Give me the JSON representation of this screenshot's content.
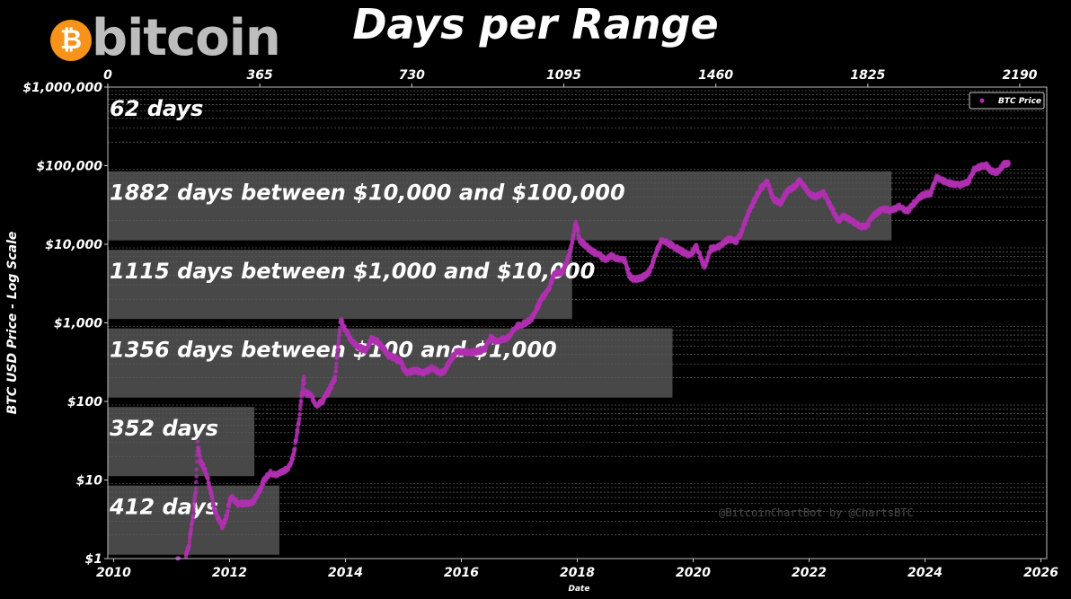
{
  "logo": {
    "text": "bitcoin",
    "glyph": "₿",
    "color": "#f7931a"
  },
  "watermark": "@BitcoinChartBot by @ChartsBTC",
  "chart_data": {
    "type": "scatter",
    "title": "Days per Range",
    "xlabel": "Date",
    "ylabel": "BTC USD Price - Log Scale",
    "yscale": "log",
    "ylim": [
      1,
      1000000
    ],
    "xlim": [
      2009.9,
      2026.1
    ],
    "x_ticks": [
      "2010",
      "2012",
      "2014",
      "2016",
      "2018",
      "2020",
      "2022",
      "2024",
      "2026"
    ],
    "y_ticks": [
      "$1",
      "$10",
      "$100",
      "$1,000",
      "$10,000",
      "$100,000",
      "$1,000,000"
    ],
    "top_axis": {
      "range": [
        0,
        2190
      ],
      "ticks": [
        "0",
        "365",
        "730",
        "1095",
        "1460",
        "1825",
        "2190"
      ]
    },
    "grid": "minor horizontal dashed",
    "legend": {
      "position": "top-right",
      "entries": [
        "BTC Price"
      ]
    },
    "series_color": "#b030b0",
    "ranges": [
      {
        "label": "62 days",
        "days": 62,
        "low": 1000000,
        "high": 1000000
      },
      {
        "label": "1882 days between $10,000 and $100,000",
        "days": 1882,
        "low": 10000,
        "high": 100000
      },
      {
        "label": "1115 days between $1,000 and $10,000",
        "days": 1115,
        "low": 1000,
        "high": 10000
      },
      {
        "label": "1356 days between $100 and $1,000",
        "days": 1356,
        "low": 100,
        "high": 1000
      },
      {
        "label": "352 days",
        "days": 352,
        "low": 10,
        "high": 100
      },
      {
        "label": "412 days",
        "days": 412,
        "low": 1,
        "high": 10
      }
    ],
    "series": [
      {
        "name": "BTC Price",
        "points": [
          [
            2011.05,
            0.9
          ],
          [
            2011.12,
            1.0
          ],
          [
            2011.2,
            0.8
          ],
          [
            2011.3,
            1.5
          ],
          [
            2011.38,
            4
          ],
          [
            2011.42,
            8
          ],
          [
            2011.45,
            29
          ],
          [
            2011.5,
            17
          ],
          [
            2011.55,
            15
          ],
          [
            2011.62,
            11
          ],
          [
            2011.68,
            7
          ],
          [
            2011.73,
            4.5
          ],
          [
            2011.8,
            3.2
          ],
          [
            2011.88,
            2.5
          ],
          [
            2011.95,
            3.5
          ],
          [
            2012.0,
            5.5
          ],
          [
            2012.05,
            6
          ],
          [
            2012.15,
            5
          ],
          [
            2012.3,
            5
          ],
          [
            2012.4,
            5.2
          ],
          [
            2012.5,
            7
          ],
          [
            2012.6,
            10
          ],
          [
            2012.7,
            12.5
          ],
          [
            2012.8,
            11.5
          ],
          [
            2012.9,
            13
          ],
          [
            2013.0,
            13.5
          ],
          [
            2013.1,
            20
          ],
          [
            2013.2,
            60
          ],
          [
            2013.28,
            200
          ],
          [
            2013.3,
            130
          ],
          [
            2013.4,
            120
          ],
          [
            2013.5,
            90
          ],
          [
            2013.6,
            100
          ],
          [
            2013.7,
            130
          ],
          [
            2013.82,
            200
          ],
          [
            2013.88,
            600
          ],
          [
            2013.92,
            1100
          ],
          [
            2014.0,
            800
          ],
          [
            2014.1,
            600
          ],
          [
            2014.2,
            500
          ],
          [
            2014.35,
            450
          ],
          [
            2014.45,
            620
          ],
          [
            2014.55,
            580
          ],
          [
            2014.65,
            480
          ],
          [
            2014.75,
            380
          ],
          [
            2014.85,
            360
          ],
          [
            2014.95,
            320
          ],
          [
            2015.05,
            230
          ],
          [
            2015.2,
            250
          ],
          [
            2015.35,
            230
          ],
          [
            2015.5,
            270
          ],
          [
            2015.6,
            230
          ],
          [
            2015.7,
            240
          ],
          [
            2015.8,
            320
          ],
          [
            2015.9,
            420
          ],
          [
            2016.0,
            430
          ],
          [
            2016.2,
            420
          ],
          [
            2016.4,
            460
          ],
          [
            2016.5,
            650
          ],
          [
            2016.6,
            580
          ],
          [
            2016.8,
            640
          ],
          [
            2016.95,
            900
          ],
          [
            2017.05,
            950
          ],
          [
            2017.2,
            1100
          ],
          [
            2017.38,
            2000
          ],
          [
            2017.5,
            2600
          ],
          [
            2017.6,
            4200
          ],
          [
            2017.75,
            4500
          ],
          [
            2017.85,
            7000
          ],
          [
            2017.92,
            11000
          ],
          [
            2017.97,
            19000
          ],
          [
            2018.05,
            11000
          ],
          [
            2018.15,
            9500
          ],
          [
            2018.25,
            8200
          ],
          [
            2018.35,
            7500
          ],
          [
            2018.5,
            6400
          ],
          [
            2018.6,
            7200
          ],
          [
            2018.7,
            6500
          ],
          [
            2018.82,
            6300
          ],
          [
            2018.9,
            4000
          ],
          [
            2018.97,
            3600
          ],
          [
            2019.1,
            3700
          ],
          [
            2019.25,
            4500
          ],
          [
            2019.35,
            7500
          ],
          [
            2019.45,
            11000
          ],
          [
            2019.55,
            10500
          ],
          [
            2019.7,
            9000
          ],
          [
            2019.82,
            8000
          ],
          [
            2019.95,
            7200
          ],
          [
            2020.05,
            9500
          ],
          [
            2020.2,
            5000
          ],
          [
            2020.3,
            8700
          ],
          [
            2020.45,
            9400
          ],
          [
            2020.6,
            11500
          ],
          [
            2020.75,
            11000
          ],
          [
            2020.85,
            15500
          ],
          [
            2020.95,
            25000
          ],
          [
            2021.05,
            35000
          ],
          [
            2021.15,
            50000
          ],
          [
            2021.28,
            62000
          ],
          [
            2021.38,
            38000
          ],
          [
            2021.5,
            33000
          ],
          [
            2021.62,
            47000
          ],
          [
            2021.75,
            55000
          ],
          [
            2021.85,
            65000
          ],
          [
            2021.97,
            47000
          ],
          [
            2022.1,
            40000
          ],
          [
            2022.25,
            45000
          ],
          [
            2022.38,
            30000
          ],
          [
            2022.5,
            20000
          ],
          [
            2022.6,
            23000
          ],
          [
            2022.75,
            19500
          ],
          [
            2022.88,
            16800
          ],
          [
            2023.0,
            17000
          ],
          [
            2023.1,
            23000
          ],
          [
            2023.25,
            28000
          ],
          [
            2023.4,
            27000
          ],
          [
            2023.55,
            30000
          ],
          [
            2023.7,
            26500
          ],
          [
            2023.82,
            34000
          ],
          [
            2023.95,
            42000
          ],
          [
            2024.1,
            45000
          ],
          [
            2024.2,
            70000
          ],
          [
            2024.35,
            63000
          ],
          [
            2024.5,
            58000
          ],
          [
            2024.62,
            57000
          ],
          [
            2024.75,
            63000
          ],
          [
            2024.85,
            90000
          ],
          [
            2024.95,
            97000
          ],
          [
            2025.05,
            102000
          ],
          [
            2025.15,
            85000
          ],
          [
            2025.25,
            82000
          ],
          [
            2025.35,
            103000
          ],
          [
            2025.45,
            108000
          ]
        ]
      }
    ]
  }
}
